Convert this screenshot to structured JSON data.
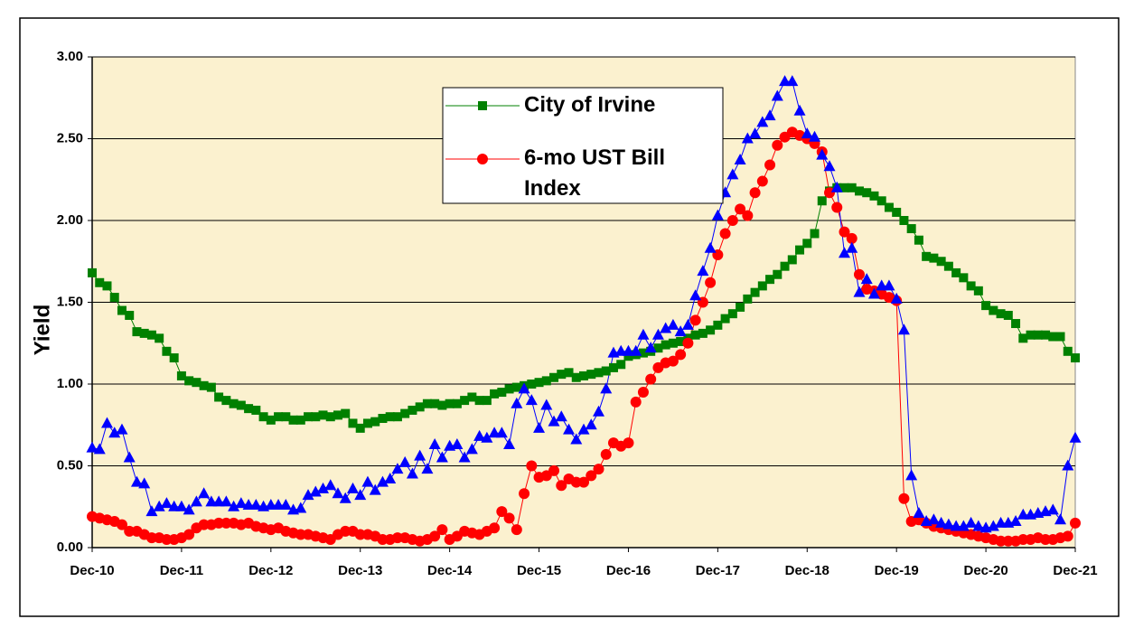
{
  "chart_data": {
    "type": "line",
    "y_label": "Yield",
    "categories": [
      "Dec-10",
      null,
      null,
      null,
      null,
      null,
      null,
      null,
      null,
      null,
      null,
      null,
      "Dec-11",
      null,
      null,
      null,
      null,
      null,
      null,
      null,
      null,
      null,
      null,
      null,
      "Dec-12",
      null,
      null,
      null,
      null,
      null,
      null,
      null,
      null,
      null,
      null,
      null,
      "Dec-13",
      null,
      null,
      null,
      null,
      null,
      null,
      null,
      null,
      null,
      null,
      null,
      "Dec-14",
      null,
      null,
      null,
      null,
      null,
      null,
      null,
      null,
      null,
      null,
      null,
      "Dec-15",
      null,
      null,
      null,
      null,
      null,
      null,
      null,
      null,
      null,
      null,
      null,
      "Dec-16",
      null,
      null,
      null,
      null,
      null,
      null,
      null,
      null,
      null,
      null,
      null,
      "Dec-17",
      null,
      null,
      null,
      null,
      null,
      null,
      null,
      null,
      null,
      null,
      null,
      "Dec-18",
      null,
      null,
      null,
      null,
      null,
      null,
      null,
      null,
      null,
      null,
      null,
      "Dec-19",
      null,
      null,
      null,
      null,
      null,
      null,
      null,
      null,
      null,
      null,
      null,
      "Dec-20",
      null,
      null,
      null,
      null,
      null,
      null,
      null,
      null,
      null,
      null,
      null,
      "Dec-21"
    ],
    "ylim": [
      0,
      3
    ],
    "yticks": [
      {
        "value": 0,
        "label": "0.00"
      },
      {
        "value": 0.5,
        "label": "0.50"
      },
      {
        "value": 1,
        "label": "1.00"
      },
      {
        "value": 1.5,
        "label": "1.50"
      },
      {
        "value": 2,
        "label": "2.00"
      },
      {
        "value": 2.5,
        "label": "2.50"
      },
      {
        "value": 3,
        "label": "3.00"
      }
    ],
    "grid": true,
    "legend": "top-center",
    "series": [
      {
        "name": "City of Irvine",
        "color": "#008000",
        "marker": "square",
        "values": [
          1.68,
          1.62,
          1.6,
          1.53,
          1.45,
          1.42,
          1.32,
          1.31,
          1.3,
          1.28,
          1.2,
          1.16,
          1.05,
          1.02,
          1.01,
          0.99,
          0.98,
          0.92,
          0.9,
          0.88,
          0.87,
          0.85,
          0.84,
          0.8,
          0.78,
          0.8,
          0.8,
          0.78,
          0.78,
          0.8,
          0.8,
          0.81,
          0.8,
          0.81,
          0.82,
          0.76,
          0.73,
          0.76,
          0.77,
          0.79,
          0.8,
          0.8,
          0.82,
          0.84,
          0.86,
          0.88,
          0.88,
          0.87,
          0.88,
          0.88,
          0.9,
          0.92,
          0.9,
          0.9,
          0.94,
          0.95,
          0.97,
          0.98,
          0.99,
          1.0,
          1.01,
          1.02,
          1.04,
          1.06,
          1.07,
          1.04,
          1.05,
          1.06,
          1.07,
          1.08,
          1.1,
          1.12,
          1.17,
          1.18,
          1.19,
          1.2,
          1.22,
          1.24,
          1.25,
          1.26,
          1.28,
          1.3,
          1.31,
          1.33,
          1.36,
          1.4,
          1.43,
          1.47,
          1.52,
          1.56,
          1.6,
          1.64,
          1.67,
          1.72,
          1.76,
          1.82,
          1.86,
          1.92,
          2.12,
          2.18,
          2.2,
          2.2,
          2.2,
          2.18,
          2.17,
          2.15,
          2.12,
          2.08,
          2.05,
          2.0,
          1.95,
          1.88,
          1.78,
          1.77,
          1.75,
          1.72,
          1.68,
          1.65,
          1.6,
          1.57,
          1.48,
          1.45,
          1.43,
          1.42,
          1.37,
          1.28,
          1.3,
          1.3,
          1.3,
          1.29,
          1.29,
          1.2,
          1.16
        ]
      },
      {
        "name": "6-mo UST Bill Index",
        "color": "#ff0000",
        "marker": "circle",
        "values": [
          0.19,
          0.18,
          0.17,
          0.16,
          0.14,
          0.1,
          0.1,
          0.08,
          0.06,
          0.06,
          0.05,
          0.05,
          0.06,
          0.08,
          0.12,
          0.14,
          0.14,
          0.15,
          0.15,
          0.15,
          0.14,
          0.15,
          0.13,
          0.12,
          0.11,
          0.12,
          0.1,
          0.09,
          0.08,
          0.08,
          0.07,
          0.06,
          0.05,
          0.08,
          0.1,
          0.1,
          0.08,
          0.08,
          0.07,
          0.05,
          0.05,
          0.06,
          0.06,
          0.05,
          0.04,
          0.05,
          0.07,
          0.11,
          0.05,
          0.07,
          0.1,
          0.09,
          0.08,
          0.1,
          0.12,
          0.22,
          0.18,
          0.11,
          0.33,
          0.5,
          0.43,
          0.44,
          0.47,
          0.38,
          0.42,
          0.4,
          0.4,
          0.44,
          0.48,
          0.57,
          0.64,
          0.62,
          0.64,
          0.89,
          0.95,
          1.03,
          1.1,
          1.13,
          1.14,
          1.18,
          1.25,
          1.39,
          1.5,
          1.62,
          1.79,
          1.92,
          2.0,
          2.07,
          2.03,
          2.17,
          2.24,
          2.34,
          2.46,
          2.51,
          2.54,
          2.52,
          2.5,
          2.47,
          2.42,
          2.17,
          2.08,
          1.93,
          1.89,
          1.67,
          1.58,
          1.57,
          1.55,
          1.53,
          1.51,
          0.3,
          0.16,
          0.17,
          0.15,
          0.13,
          0.12,
          0.11,
          0.1,
          0.09,
          0.08,
          0.07,
          0.06,
          0.05,
          0.04,
          0.04,
          0.04,
          0.05,
          0.05,
          0.06,
          0.05,
          0.05,
          0.06,
          0.07,
          0.15
        ]
      },
      {
        "color": "#0000ff",
        "marker": "triangle",
        "values": [
          0.61,
          0.6,
          0.76,
          0.7,
          0.72,
          0.55,
          0.4,
          0.39,
          0.22,
          0.25,
          0.27,
          0.25,
          0.25,
          0.23,
          0.28,
          0.33,
          0.28,
          0.28,
          0.28,
          0.25,
          0.27,
          0.26,
          0.26,
          0.25,
          0.26,
          0.26,
          0.26,
          0.23,
          0.24,
          0.32,
          0.34,
          0.36,
          0.38,
          0.33,
          0.3,
          0.36,
          0.32,
          0.4,
          0.35,
          0.4,
          0.42,
          0.48,
          0.52,
          0.45,
          0.56,
          0.48,
          0.63,
          0.55,
          0.62,
          0.63,
          0.55,
          0.6,
          0.68,
          0.67,
          0.7,
          0.7,
          0.63,
          0.88,
          0.97,
          0.9,
          0.73,
          0.87,
          0.77,
          0.8,
          0.72,
          0.66,
          0.72,
          0.75,
          0.83,
          0.97,
          1.19,
          1.2,
          1.2,
          1.2,
          1.3,
          1.22,
          1.3,
          1.34,
          1.36,
          1.32,
          1.36,
          1.54,
          1.69,
          1.83,
          2.03,
          2.17,
          2.28,
          2.37,
          2.5,
          2.53,
          2.6,
          2.64,
          2.76,
          2.85,
          2.85,
          2.67,
          2.53,
          2.51,
          2.4,
          2.33,
          2.2,
          1.8,
          1.83,
          1.56,
          1.64,
          1.55,
          1.6,
          1.6,
          1.52,
          1.33,
          0.44,
          0.21,
          0.16,
          0.17,
          0.15,
          0.14,
          0.13,
          0.13,
          0.15,
          0.13,
          0.12,
          0.13,
          0.15,
          0.15,
          0.16,
          0.2,
          0.2,
          0.21,
          0.22,
          0.23,
          0.17,
          0.5,
          0.67
        ]
      }
    ]
  }
}
